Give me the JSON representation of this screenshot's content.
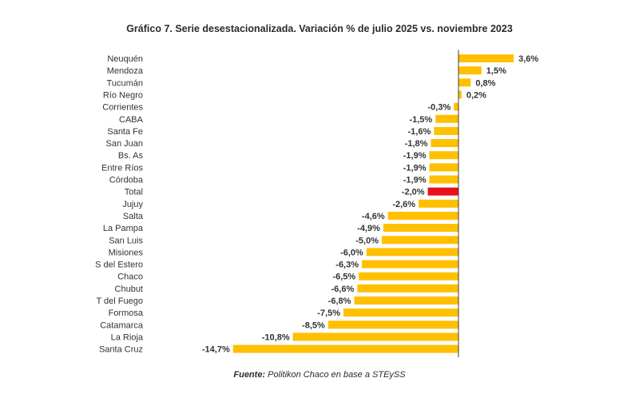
{
  "chart_data": {
    "type": "bar",
    "orientation": "horizontal",
    "title": "Gráfico 7. Serie desestacionalizada. Variación % de julio 2025 vs. noviembre 2023",
    "source_label": "Fuente:",
    "source_text": "Politikon Chaco en base a STEySS",
    "xlim": [
      -14.7,
      3.6
    ],
    "colors": {
      "default": "#FFC000",
      "highlight": "#E8111A",
      "axis": "#404040"
    },
    "highlight_category": "Total",
    "categories": [
      "Neuquén",
      "Mendoza",
      "Tucumán",
      "Río Negro",
      "Corrientes",
      "CABA",
      "Santa Fe",
      "San Juan",
      "Bs. As",
      "Entre Ríos",
      "Córdoba",
      "Total",
      "Jujuy",
      "Salta",
      "La Pampa",
      "San Luis",
      "Misiones",
      "S del Estero",
      "Chaco",
      "Chubut",
      "T del Fuego",
      "Formosa",
      "Catamarca",
      "La Rioja",
      "Santa Cruz"
    ],
    "values": [
      3.6,
      1.5,
      0.8,
      0.2,
      -0.3,
      -1.5,
      -1.6,
      -1.8,
      -1.9,
      -1.9,
      -1.9,
      -2.0,
      -2.6,
      -4.6,
      -4.9,
      -5.0,
      -6.0,
      -6.3,
      -6.5,
      -6.6,
      -6.8,
      -7.5,
      -8.5,
      -10.8,
      -14.7
    ],
    "value_labels": [
      "3,6%",
      "1,5%",
      "0,8%",
      "0,2%",
      "-0,3%",
      "-1,5%",
      "-1,6%",
      "-1,8%",
      "-1,9%",
      "-1,9%",
      "-1,9%",
      "-2,0%",
      "-2,6%",
      "-4,6%",
      "-4,9%",
      "-5,0%",
      "-6,0%",
      "-6,3%",
      "-6,5%",
      "-6,6%",
      "-6,8%",
      "-7,5%",
      "-8,5%",
      "-10,8%",
      "-14,7%"
    ]
  }
}
